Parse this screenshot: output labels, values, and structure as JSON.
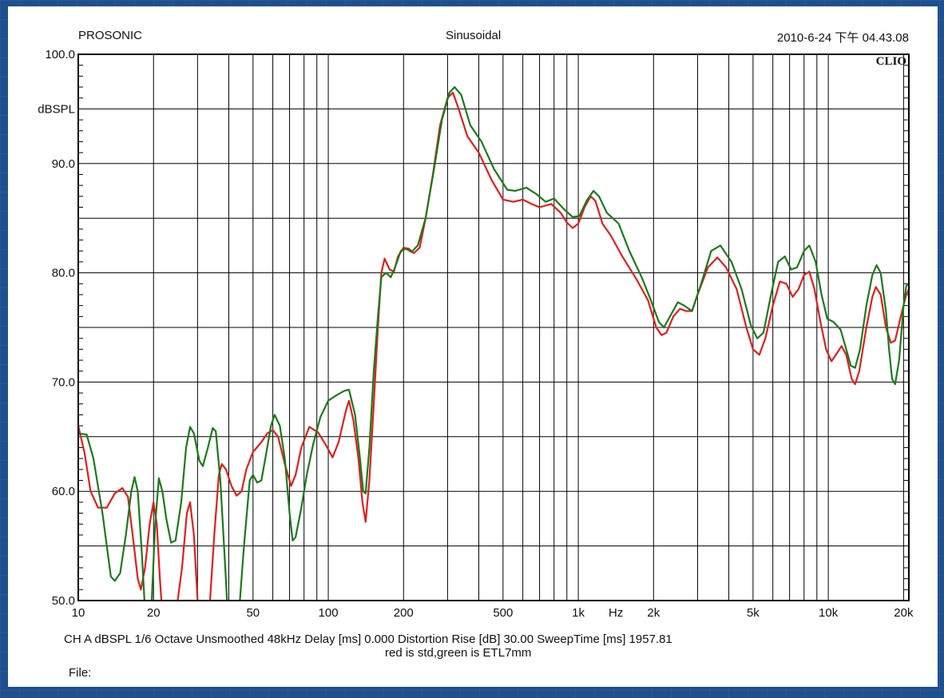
{
  "header": {
    "left": "PROSONIC",
    "center": "Sinusoidal",
    "right": "2010-6-24 下午 04.43.08"
  },
  "brand": "CLIO",
  "footer": {
    "settings": "CH A   dBSPL    1/6 Octave   Unsmoothed   48kHz   Delay [ms] 0.000    Distortion Rise [dB] 30.00    SweepTime [ms] 1957.81",
    "note": "red is std,green is ETL7mm",
    "file_label": "File:"
  },
  "colors": {
    "background": "#1f4f8c",
    "series_red": "#e01e1e",
    "series_green": "#1a7a1a",
    "grid": "#000000"
  },
  "chart_data": {
    "type": "line",
    "xscale": "log",
    "xlim": [
      10,
      21000
    ],
    "ylim": [
      50,
      100
    ],
    "grid": true,
    "ylabel": "dBSPL",
    "xunit_label": "Hz",
    "y_tick_labels": [
      {
        "value": 100,
        "label": "100.0"
      },
      {
        "value": 90,
        "label": "90.0"
      },
      {
        "value": 80,
        "label": "80.0"
      },
      {
        "value": 70,
        "label": "70.0"
      },
      {
        "value": 60,
        "label": "60.0"
      },
      {
        "value": 50,
        "label": "50.0"
      }
    ],
    "x_tick_labels": [
      {
        "value": 10,
        "label": "10"
      },
      {
        "value": 20,
        "label": "20"
      },
      {
        "value": 50,
        "label": "50"
      },
      {
        "value": 100,
        "label": "100"
      },
      {
        "value": 200,
        "label": "200"
      },
      {
        "value": 500,
        "label": "500"
      },
      {
        "value": 1000,
        "label": "1k"
      },
      {
        "value": 2000,
        "label": "2k"
      },
      {
        "value": 5000,
        "label": "5k"
      },
      {
        "value": 10000,
        "label": "10k"
      },
      {
        "value": 20000,
        "label": "20k"
      }
    ],
    "series": [
      {
        "color": "#e01e1e",
        "points": [
          [
            10,
            66
          ],
          [
            10.6,
            63.5
          ],
          [
            11.2,
            60
          ],
          [
            12,
            58.5
          ],
          [
            13,
            58.5
          ],
          [
            14,
            59.8
          ],
          [
            15,
            60.3
          ],
          [
            15.8,
            59.5
          ],
          [
            16.5,
            56
          ],
          [
            17.3,
            52
          ],
          [
            17.8,
            51
          ],
          [
            18.5,
            53
          ],
          [
            19.3,
            57
          ],
          [
            20,
            59
          ],
          [
            20.6,
            57
          ],
          [
            21.2,
            52
          ],
          [
            21.8,
            48
          ],
          [
            24,
            47
          ],
          [
            26,
            53
          ],
          [
            27.2,
            58
          ],
          [
            28,
            59
          ],
          [
            29,
            56
          ],
          [
            30,
            50
          ],
          [
            31,
            46
          ],
          [
            33,
            47
          ],
          [
            35,
            56
          ],
          [
            36.5,
            61.5
          ],
          [
            37.5,
            62.5
          ],
          [
            39,
            62
          ],
          [
            41,
            60.5
          ],
          [
            43,
            59.6
          ],
          [
            45,
            60
          ],
          [
            47,
            62
          ],
          [
            50,
            63.6
          ],
          [
            54,
            64.5
          ],
          [
            57,
            65.3
          ],
          [
            60,
            65.6
          ],
          [
            63,
            65
          ],
          [
            67,
            62.5
          ],
          [
            71,
            60.5
          ],
          [
            74,
            61.5
          ],
          [
            78,
            64
          ],
          [
            84,
            65.9
          ],
          [
            91,
            65.4
          ],
          [
            98,
            64.2
          ],
          [
            104,
            63.1
          ],
          [
            110,
            64.5
          ],
          [
            118,
            67.5
          ],
          [
            121,
            68.3
          ],
          [
            126,
            66.5
          ],
          [
            132,
            63
          ],
          [
            137,
            59
          ],
          [
            141,
            57.2
          ],
          [
            146,
            61
          ],
          [
            152,
            68
          ],
          [
            158,
            75
          ],
          [
            163,
            80
          ],
          [
            168,
            81.3
          ],
          [
            176,
            80.3
          ],
          [
            183,
            80.1
          ],
          [
            190,
            81.5
          ],
          [
            200,
            82.3
          ],
          [
            210,
            82.2
          ],
          [
            220,
            81.8
          ],
          [
            232,
            82.3
          ],
          [
            245,
            85
          ],
          [
            262,
            89
          ],
          [
            280,
            93.5
          ],
          [
            300,
            96
          ],
          [
            315,
            96.5
          ],
          [
            330,
            95.2
          ],
          [
            360,
            92.5
          ],
          [
            400,
            91
          ],
          [
            450,
            88.5
          ],
          [
            500,
            86.7
          ],
          [
            550,
            86.5
          ],
          [
            600,
            86.7
          ],
          [
            650,
            86.3
          ],
          [
            700,
            86
          ],
          [
            780,
            86.3
          ],
          [
            850,
            85.5
          ],
          [
            900,
            84.6
          ],
          [
            950,
            84.1
          ],
          [
            1000,
            84.5
          ],
          [
            1060,
            86
          ],
          [
            1120,
            87
          ],
          [
            1170,
            86.6
          ],
          [
            1250,
            84.5
          ],
          [
            1350,
            83.4
          ],
          [
            1500,
            81.5
          ],
          [
            1700,
            79.5
          ],
          [
            1900,
            77.5
          ],
          [
            2050,
            75
          ],
          [
            2150,
            74.3
          ],
          [
            2250,
            74.5
          ],
          [
            2400,
            76
          ],
          [
            2550,
            76.7
          ],
          [
            2700,
            76.5
          ],
          [
            2850,
            76.5
          ],
          [
            3000,
            78
          ],
          [
            3300,
            80.5
          ],
          [
            3600,
            81.4
          ],
          [
            3900,
            80.5
          ],
          [
            4300,
            78.5
          ],
          [
            4700,
            75
          ],
          [
            5000,
            73
          ],
          [
            5300,
            72.5
          ],
          [
            5600,
            74
          ],
          [
            6000,
            77
          ],
          [
            6400,
            79.2
          ],
          [
            6800,
            79
          ],
          [
            7200,
            77.8
          ],
          [
            7600,
            78.5
          ],
          [
            8000,
            79.8
          ],
          [
            8400,
            80.1
          ],
          [
            8800,
            78.5
          ],
          [
            9300,
            75.5
          ],
          [
            9800,
            73
          ],
          [
            10300,
            71.9
          ],
          [
            10800,
            72.6
          ],
          [
            11300,
            73.3
          ],
          [
            11800,
            72.5
          ],
          [
            12400,
            70.3
          ],
          [
            12800,
            69.8
          ],
          [
            13300,
            71
          ],
          [
            14200,
            75
          ],
          [
            15000,
            77.8
          ],
          [
            15500,
            78.7
          ],
          [
            16200,
            78
          ],
          [
            17000,
            75
          ],
          [
            17800,
            73.6
          ],
          [
            18500,
            73.8
          ],
          [
            19500,
            76
          ],
          [
            20500,
            78
          ],
          [
            21000,
            78.5
          ]
        ]
      },
      {
        "color": "#1a7a1a",
        "points": [
          [
            10,
            65.3
          ],
          [
            10.8,
            65.2
          ],
          [
            11.5,
            63
          ],
          [
            12.5,
            58
          ],
          [
            13,
            55
          ],
          [
            13.5,
            52.2
          ],
          [
            14,
            51.8
          ],
          [
            14.7,
            52.5
          ],
          [
            15.5,
            56
          ],
          [
            16.3,
            60
          ],
          [
            16.8,
            61.3
          ],
          [
            17.3,
            60
          ],
          [
            18,
            54
          ],
          [
            18.5,
            49
          ],
          [
            19.5,
            48
          ],
          [
            20.3,
            57
          ],
          [
            21,
            61.2
          ],
          [
            21.7,
            60
          ],
          [
            22.5,
            57.5
          ],
          [
            23.5,
            55.3
          ],
          [
            24.5,
            55.5
          ],
          [
            25.8,
            59
          ],
          [
            27,
            64
          ],
          [
            28,
            65.9
          ],
          [
            29,
            65.3
          ],
          [
            30.5,
            62.8
          ],
          [
            31.5,
            62.3
          ],
          [
            33,
            64
          ],
          [
            34.5,
            65.8
          ],
          [
            35.5,
            65.5
          ],
          [
            37,
            61
          ],
          [
            38.5,
            54
          ],
          [
            40,
            47
          ],
          [
            43,
            46
          ],
          [
            46,
            55
          ],
          [
            48.5,
            61
          ],
          [
            50,
            61.5
          ],
          [
            52,
            60.8
          ],
          [
            54,
            61
          ],
          [
            56,
            63
          ],
          [
            59,
            66
          ],
          [
            61,
            67
          ],
          [
            64,
            66
          ],
          [
            67,
            63
          ],
          [
            70,
            58
          ],
          [
            72,
            55.5
          ],
          [
            74,
            55.8
          ],
          [
            78,
            58.5
          ],
          [
            82,
            61.5
          ],
          [
            87,
            64.3
          ],
          [
            93,
            66.8
          ],
          [
            100,
            68.3
          ],
          [
            108,
            68.8
          ],
          [
            116,
            69.2
          ],
          [
            121,
            69.3
          ],
          [
            128,
            67
          ],
          [
            134,
            63
          ],
          [
            138,
            60
          ],
          [
            141,
            59.8
          ],
          [
            146,
            64
          ],
          [
            152,
            71
          ],
          [
            158,
            76
          ],
          [
            163,
            79.6
          ],
          [
            170,
            80
          ],
          [
            178,
            79.6
          ],
          [
            185,
            80.5
          ],
          [
            195,
            82
          ],
          [
            205,
            82.2
          ],
          [
            215,
            81.9
          ],
          [
            228,
            82.5
          ],
          [
            245,
            85
          ],
          [
            265,
            89.5
          ],
          [
            285,
            94
          ],
          [
            305,
            96.5
          ],
          [
            320,
            97
          ],
          [
            340,
            96.3
          ],
          [
            370,
            93.5
          ],
          [
            410,
            92
          ],
          [
            460,
            89.5
          ],
          [
            520,
            87.6
          ],
          [
            560,
            87.5
          ],
          [
            620,
            87.8
          ],
          [
            680,
            87.2
          ],
          [
            740,
            86.5
          ],
          [
            800,
            86.8
          ],
          [
            870,
            85.9
          ],
          [
            950,
            85.1
          ],
          [
            1010,
            85.2
          ],
          [
            1080,
            86.6
          ],
          [
            1150,
            87.5
          ],
          [
            1210,
            87
          ],
          [
            1300,
            85.5
          ],
          [
            1450,
            84.5
          ],
          [
            1600,
            82
          ],
          [
            1800,
            79.5
          ],
          [
            1950,
            77.5
          ],
          [
            2100,
            75.5
          ],
          [
            2200,
            75
          ],
          [
            2300,
            75.8
          ],
          [
            2500,
            77.3
          ],
          [
            2650,
            77
          ],
          [
            2850,
            76.5
          ],
          [
            3100,
            79
          ],
          [
            3400,
            82
          ],
          [
            3700,
            82.5
          ],
          [
            4100,
            81
          ],
          [
            4500,
            78.5
          ],
          [
            4900,
            75.2
          ],
          [
            5200,
            74
          ],
          [
            5500,
            74.5
          ],
          [
            5900,
            78
          ],
          [
            6300,
            81
          ],
          [
            6700,
            81.5
          ],
          [
            7100,
            80.3
          ],
          [
            7500,
            80.5
          ],
          [
            8000,
            82
          ],
          [
            8400,
            82.5
          ],
          [
            8900,
            81
          ],
          [
            9400,
            78
          ],
          [
            9900,
            75.8
          ],
          [
            10500,
            75.5
          ],
          [
            11200,
            74.8
          ],
          [
            11800,
            73
          ],
          [
            12300,
            71.5
          ],
          [
            12800,
            71.3
          ],
          [
            13400,
            73
          ],
          [
            14200,
            77
          ],
          [
            15000,
            79.8
          ],
          [
            15600,
            80.7
          ],
          [
            16200,
            80
          ],
          [
            17000,
            76.5
          ],
          [
            17500,
            73
          ],
          [
            18000,
            70.3
          ],
          [
            18500,
            69.8
          ],
          [
            19200,
            72
          ],
          [
            20000,
            77
          ],
          [
            20500,
            78.8
          ],
          [
            21000,
            79
          ]
        ]
      }
    ]
  }
}
